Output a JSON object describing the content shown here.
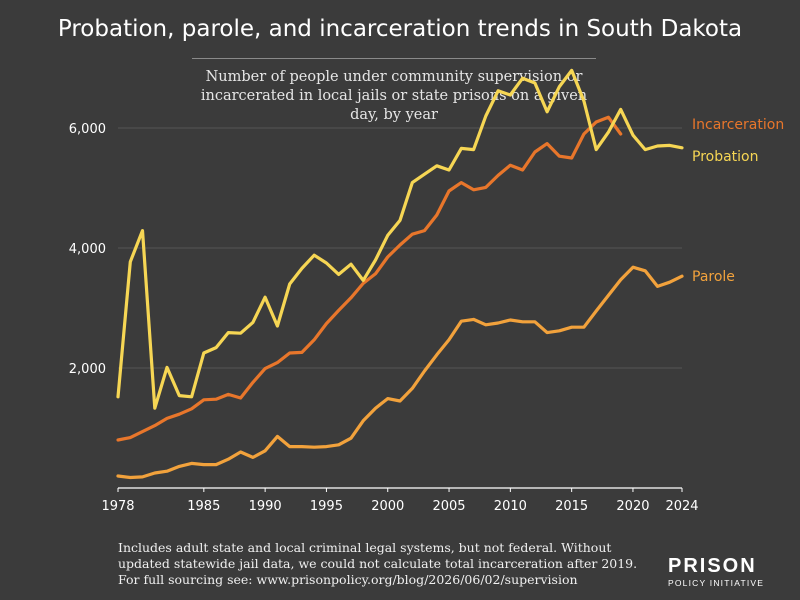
{
  "header": {
    "title": "Probation, parole, and incarceration trends in South Dakota",
    "subtitle": "Number of people under community supervision or incarcerated in local jails or state prisons on a given day, by year"
  },
  "footnote": {
    "line1": "Includes adult state and local criminal legal systems, but not federal. Without",
    "line2": "updated statewide jail data, we could not calculate total incarceration after 2019.",
    "line3": "For full sourcing see: www.prisonpolicy.org/blog/2026/06/02/supervision"
  },
  "logo": {
    "main": "PRISON",
    "sub": "POLICY INITIATIVE"
  },
  "chart_data": {
    "type": "line",
    "title": "Probation, parole, and incarceration trends in South Dakota",
    "subtitle": "Number of people under community supervision or incarcerated in local jails or state prisons on a given day, by year",
    "xlabel": "",
    "ylabel": "",
    "xlim": [
      1978,
      2024
    ],
    "ylim": [
      0,
      7000
    ],
    "x_ticks": [
      1978,
      1985,
      1990,
      1995,
      2000,
      2005,
      2010,
      2015,
      2020,
      2024
    ],
    "x_tick_labels": [
      "1978",
      "1985",
      "1990",
      "1995",
      "2000",
      "2005",
      "2010",
      "2015",
      "2020",
      "2024"
    ],
    "y_ticks": [
      2000,
      4000,
      6000
    ],
    "y_tick_labels": [
      "2,000",
      "4,000",
      "6,000"
    ],
    "grid": "horizontal",
    "legend": "inline labels at right end of lines",
    "series": [
      {
        "name": "Incarceration",
        "color": "#e8762b",
        "points": [
          [
            1978,
            800
          ],
          [
            1979,
            840
          ],
          [
            1980,
            940
          ],
          [
            1981,
            1040
          ],
          [
            1982,
            1160
          ],
          [
            1983,
            1230
          ],
          [
            1984,
            1320
          ],
          [
            1985,
            1470
          ],
          [
            1986,
            1480
          ],
          [
            1987,
            1560
          ],
          [
            1988,
            1500
          ],
          [
            1989,
            1760
          ],
          [
            1990,
            1990
          ],
          [
            1991,
            2090
          ],
          [
            1992,
            2250
          ],
          [
            1993,
            2260
          ],
          [
            1994,
            2470
          ],
          [
            1995,
            2740
          ],
          [
            1996,
            2960
          ],
          [
            1997,
            3170
          ],
          [
            1998,
            3410
          ],
          [
            1999,
            3570
          ],
          [
            2000,
            3850
          ],
          [
            2001,
            4050
          ],
          [
            2002,
            4230
          ],
          [
            2003,
            4290
          ],
          [
            2004,
            4550
          ],
          [
            2005,
            4950
          ],
          [
            2006,
            5090
          ],
          [
            2007,
            4970
          ],
          [
            2008,
            5010
          ],
          [
            2009,
            5210
          ],
          [
            2010,
            5380
          ],
          [
            2011,
            5300
          ],
          [
            2012,
            5600
          ],
          [
            2013,
            5740
          ],
          [
            2014,
            5530
          ],
          [
            2015,
            5500
          ],
          [
            2016,
            5900
          ],
          [
            2017,
            6100
          ],
          [
            2018,
            6180
          ],
          [
            2019,
            5900
          ]
        ]
      },
      {
        "name": "Probation",
        "color": "#f6d654",
        "points": [
          [
            1978,
            1520
          ],
          [
            1979,
            3770
          ],
          [
            1980,
            4290
          ],
          [
            1981,
            1330
          ],
          [
            1982,
            2010
          ],
          [
            1983,
            1540
          ],
          [
            1984,
            1520
          ],
          [
            1985,
            2250
          ],
          [
            1986,
            2340
          ],
          [
            1987,
            2590
          ],
          [
            1988,
            2580
          ],
          [
            1989,
            2760
          ],
          [
            1990,
            3180
          ],
          [
            1991,
            2700
          ],
          [
            1992,
            3400
          ],
          [
            1993,
            3660
          ],
          [
            1994,
            3880
          ],
          [
            1995,
            3750
          ],
          [
            1996,
            3560
          ],
          [
            1997,
            3730
          ],
          [
            1998,
            3460
          ],
          [
            1999,
            3800
          ],
          [
            2000,
            4210
          ],
          [
            2001,
            4460
          ],
          [
            2002,
            5090
          ],
          [
            2003,
            5230
          ],
          [
            2004,
            5370
          ],
          [
            2005,
            5300
          ],
          [
            2006,
            5660
          ],
          [
            2007,
            5640
          ],
          [
            2008,
            6200
          ],
          [
            2009,
            6620
          ],
          [
            2010,
            6550
          ],
          [
            2011,
            6830
          ],
          [
            2012,
            6750
          ],
          [
            2013,
            6270
          ],
          [
            2014,
            6690
          ],
          [
            2015,
            6960
          ],
          [
            2016,
            6450
          ],
          [
            2017,
            5640
          ],
          [
            2018,
            5930
          ],
          [
            2019,
            6310
          ],
          [
            2020,
            5880
          ],
          [
            2021,
            5640
          ],
          [
            2022,
            5700
          ],
          [
            2023,
            5710
          ],
          [
            2024,
            5670
          ]
        ]
      },
      {
        "name": "Parole",
        "color": "#f2a23c",
        "points": [
          [
            1978,
            200
          ],
          [
            1979,
            175
          ],
          [
            1980,
            185
          ],
          [
            1981,
            250
          ],
          [
            1982,
            280
          ],
          [
            1983,
            360
          ],
          [
            1984,
            410
          ],
          [
            1985,
            390
          ],
          [
            1986,
            390
          ],
          [
            1987,
            480
          ],
          [
            1988,
            600
          ],
          [
            1989,
            510
          ],
          [
            1990,
            620
          ],
          [
            1991,
            860
          ],
          [
            1992,
            690
          ],
          [
            1993,
            690
          ],
          [
            1994,
            680
          ],
          [
            1995,
            690
          ],
          [
            1996,
            720
          ],
          [
            1997,
            830
          ],
          [
            1998,
            1120
          ],
          [
            1999,
            1330
          ],
          [
            2000,
            1490
          ],
          [
            2001,
            1450
          ],
          [
            2002,
            1660
          ],
          [
            2003,
            1950
          ],
          [
            2004,
            2220
          ],
          [
            2005,
            2470
          ],
          [
            2006,
            2780
          ],
          [
            2007,
            2810
          ],
          [
            2008,
            2720
          ],
          [
            2009,
            2750
          ],
          [
            2010,
            2800
          ],
          [
            2011,
            2770
          ],
          [
            2012,
            2770
          ],
          [
            2013,
            2590
          ],
          [
            2014,
            2620
          ],
          [
            2015,
            2680
          ],
          [
            2016,
            2680
          ],
          [
            2017,
            2950
          ],
          [
            2018,
            3210
          ],
          [
            2019,
            3470
          ],
          [
            2020,
            3680
          ],
          [
            2021,
            3620
          ],
          [
            2022,
            3360
          ],
          [
            2023,
            3430
          ],
          [
            2024,
            3530
          ]
        ]
      }
    ]
  }
}
